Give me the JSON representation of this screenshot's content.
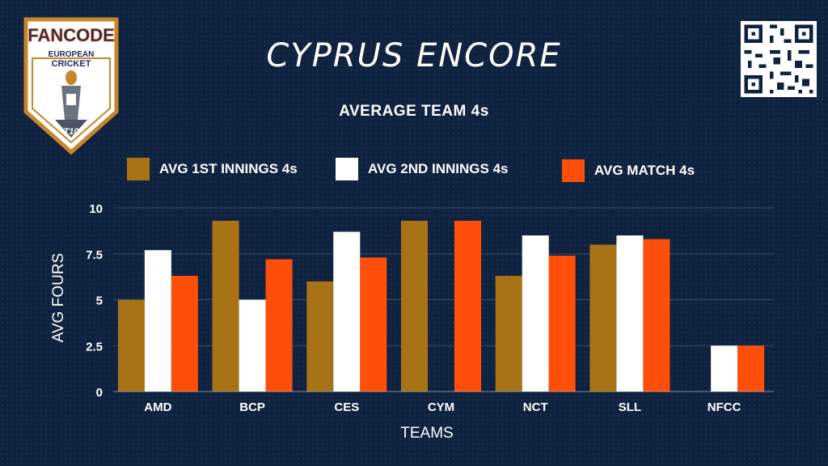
{
  "logo": {
    "brand_text": "FANCODE",
    "line1": "EUROPEAN",
    "line2": "CRICKET",
    "badge": "T10"
  },
  "header": {
    "title": "CYPRUS ENCORE",
    "subtitle": "AVERAGE TEAM 4s"
  },
  "colors": {
    "background": "#0f2340",
    "series1": "#a87216",
    "series2": "#ffffff",
    "series3": "#ff4f0a"
  },
  "chart_data": {
    "type": "bar",
    "categories": [
      "AMD",
      "BCP",
      "CES",
      "CYM",
      "NCT",
      "SLL",
      "NFCC"
    ],
    "series": [
      {
        "name": "AVG 1ST INNINGS 4s",
        "values": [
          5,
          9.3,
          6,
          9.3,
          6.3,
          8,
          0
        ]
      },
      {
        "name": "AVG 2ND INNINGS 4s",
        "values": [
          7.7,
          5,
          8.7,
          0,
          8.5,
          8.5,
          2.5
        ]
      },
      {
        "name": "AVG MATCH 4s",
        "values": [
          6.3,
          7.2,
          7.3,
          9.3,
          7.4,
          8.3,
          2.5
        ]
      }
    ],
    "xlabel": "TEAMS",
    "ylabel": "AVG FOURS",
    "ylim": [
      0,
      10
    ],
    "yticks": [
      0,
      2.5,
      5,
      7.5,
      10
    ],
    "ytick_labels": [
      "0",
      "2.5",
      "5",
      "7.5",
      "10"
    ],
    "grid": true,
    "legend_position": "top"
  }
}
